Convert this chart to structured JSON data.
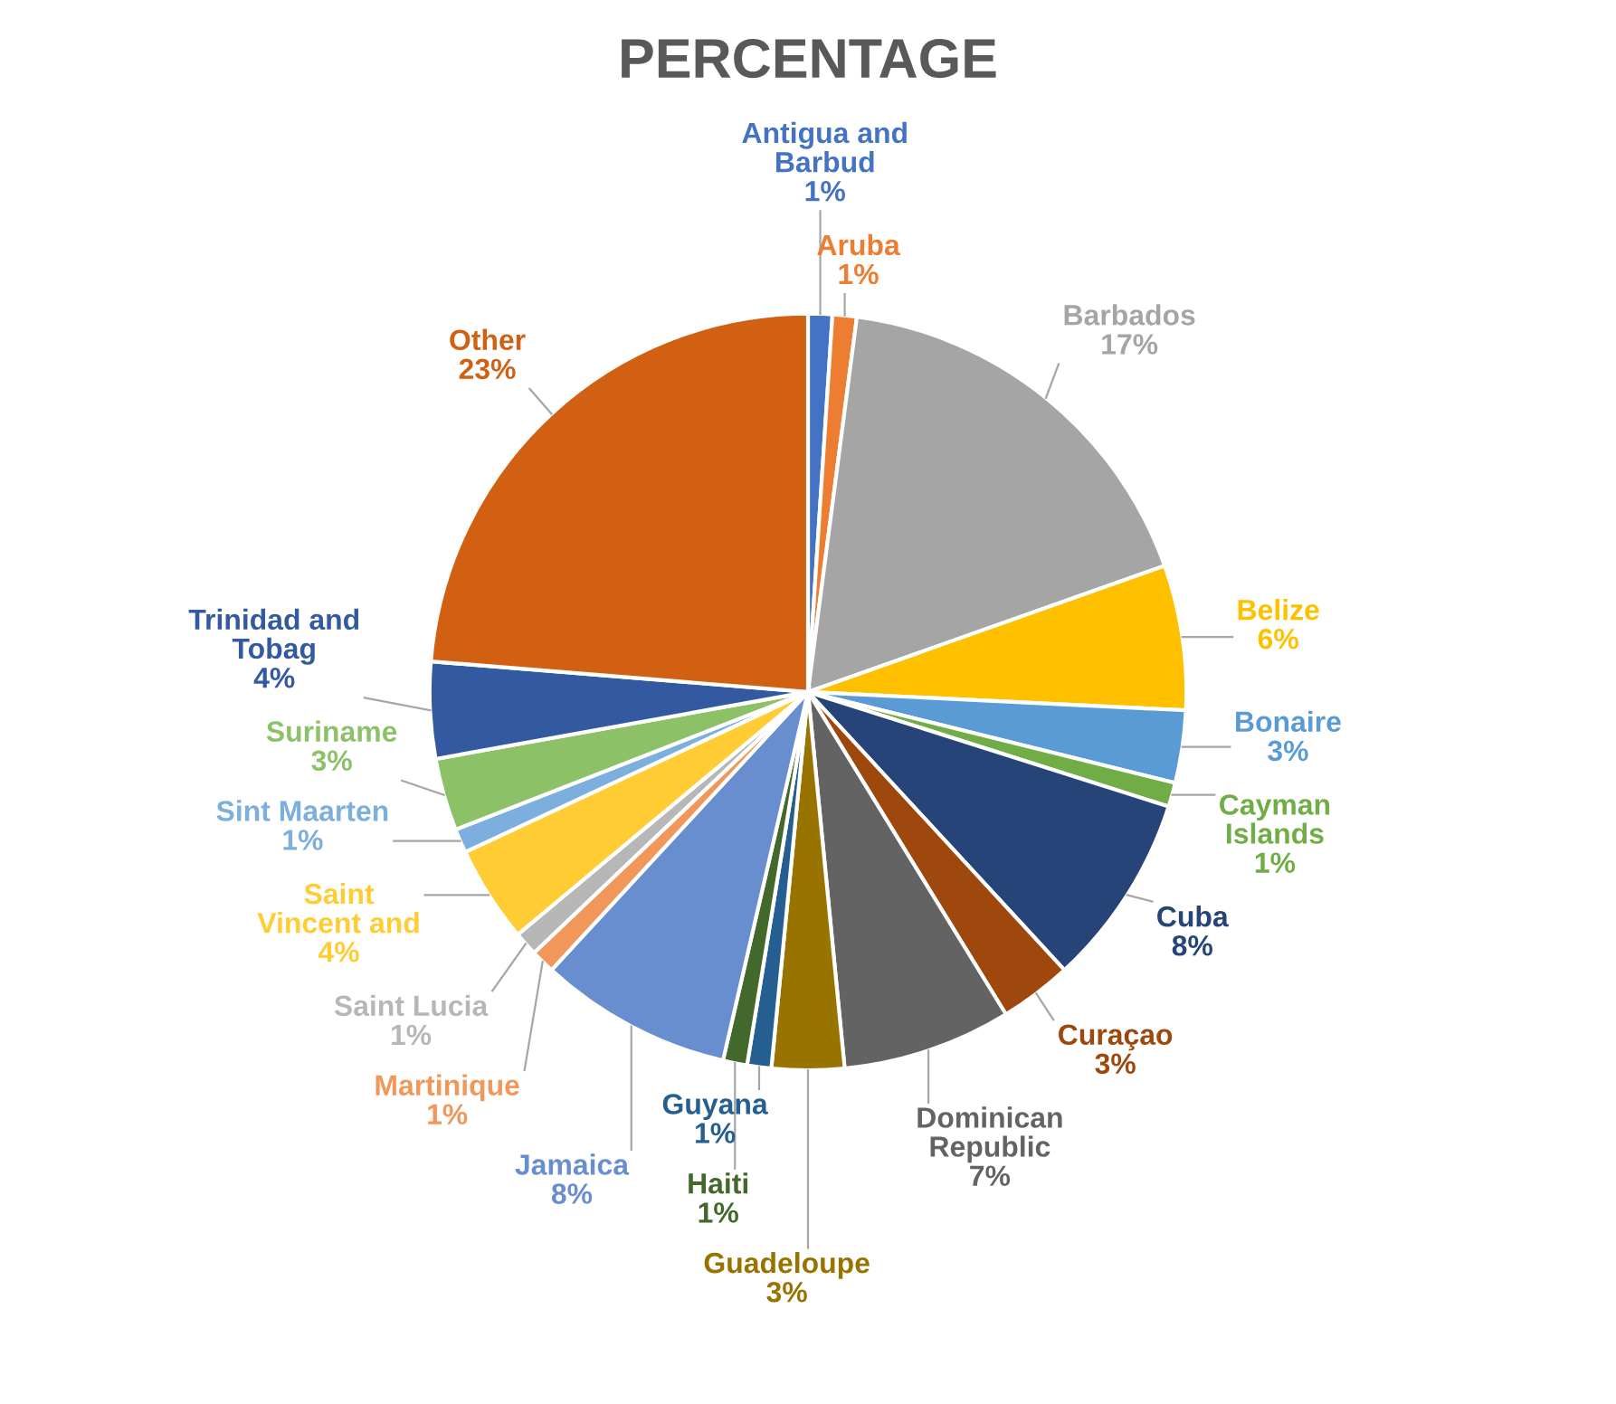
{
  "chart_data": {
    "type": "pie",
    "title": "PERCENTAGE",
    "categories": [
      "Antigua and Barbud",
      "Aruba",
      "Barbados",
      "Belize",
      "Bonaire",
      "Cayman Islands",
      "Cuba",
      "Curaçao",
      "Dominican Republic",
      "Guadeloupe",
      "Guyana",
      "Haiti",
      "Jamaica",
      "Martinique",
      "Saint Lucia",
      "Saint Vincent and",
      "Sint Maarten",
      "Suriname",
      "Trinidad and Tobag",
      "Other"
    ],
    "values": [
      1,
      1,
      17,
      6,
      3,
      1,
      8,
      3,
      7,
      3,
      1,
      1,
      8,
      1,
      1,
      4,
      1,
      3,
      4,
      23
    ],
    "value_labels": [
      "1%",
      "1%",
      "17%",
      "6%",
      "3%",
      "1%",
      "8%",
      "3%",
      "7%",
      "3%",
      "1%",
      "1%",
      "8%",
      "1%",
      "1%",
      "4%",
      "1%",
      "3%",
      "4%",
      "23%"
    ],
    "colors": [
      "#4472c4",
      "#ed7d31",
      "#a5a5a5",
      "#ffc000",
      "#5b9bd5",
      "#70ad47",
      "#264478",
      "#9e480e",
      "#636363",
      "#997300",
      "#255e91",
      "#43682b",
      "#698ed0",
      "#f1975a",
      "#b7b7b7",
      "#ffcd33",
      "#7cafdd",
      "#8cc168",
      "#335aa1",
      "#d26012"
    ],
    "legend": false
  }
}
